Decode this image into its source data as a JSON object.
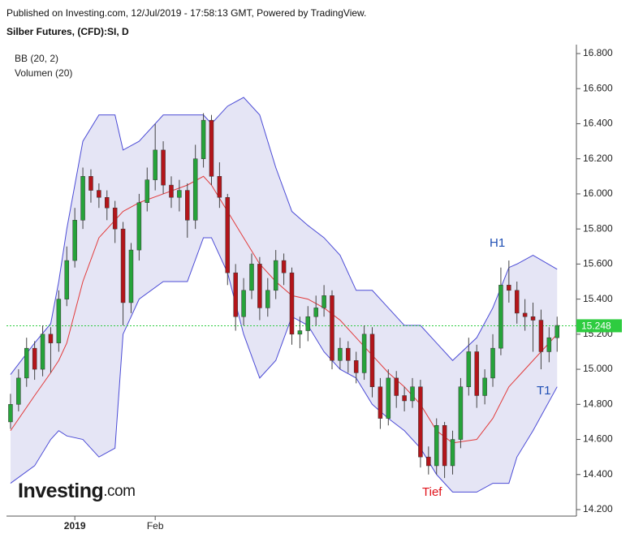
{
  "chart_data": {
    "type": "candlestick",
    "published": "Published on Investing.com, 12/Jul/2019 - 17:58:13 GMT, Powered by TradingView.",
    "title": "Silber Futures, (CFD):SI, D",
    "indicators": [
      "BB (20, 2)",
      "Volumen (20)"
    ],
    "logo": {
      "name": "Investing",
      "suffix": ".com"
    },
    "xlim": [
      -0.5,
      70.4
    ],
    "xticks": [
      {
        "value": 8,
        "label": "2019"
      },
      {
        "value": 18,
        "label": "Feb"
      }
    ],
    "ylim": [
      14.2,
      16.8
    ],
    "yticks": [
      {
        "value": 14.2,
        "label": "14.200"
      },
      {
        "value": 14.4,
        "label": "14.400"
      },
      {
        "value": 14.6,
        "label": "14.600"
      },
      {
        "value": 14.8,
        "label": "14.800"
      },
      {
        "value": 15.0,
        "label": "15.000"
      },
      {
        "value": 15.2,
        "label": "15.200"
      },
      {
        "value": 15.4,
        "label": "15.400"
      },
      {
        "value": 15.6,
        "label": "15.600"
      },
      {
        "value": 15.8,
        "label": "15.800"
      },
      {
        "value": 16.0,
        "label": "16.000"
      },
      {
        "value": 16.2,
        "label": "16.200"
      },
      {
        "value": 16.4,
        "label": "16.400"
      },
      {
        "value": 16.6,
        "label": "16.600"
      },
      {
        "value": 16.8,
        "label": "16.800"
      }
    ],
    "up_color": "#26a33a",
    "down_color": "#b3151a",
    "open": [
      14.7,
      14.8,
      14.95,
      15.12,
      15.0,
      15.2,
      15.15,
      15.4,
      15.62,
      15.85,
      16.1,
      16.02,
      15.98,
      15.92,
      15.8,
      15.38,
      15.68,
      15.95,
      16.08,
      16.25,
      16.05,
      15.98,
      16.02,
      15.85,
      16.2,
      16.42,
      16.1,
      15.98,
      15.55,
      15.3,
      15.45,
      15.6,
      15.35,
      15.45,
      15.62,
      15.55,
      15.2,
      15.22,
      15.3,
      15.35,
      15.42,
      15.05,
      15.12,
      15.05,
      14.98,
      15.2,
      14.9,
      14.72,
      14.95,
      14.85,
      14.82,
      14.9,
      14.5,
      14.45,
      14.68,
      14.45,
      14.6,
      14.9,
      15.1,
      14.85,
      14.95,
      15.12,
      15.48,
      15.45,
      15.32,
      15.3,
      15.28,
      15.1,
      15.18
    ],
    "high": [
      14.86,
      15.0,
      15.18,
      15.16,
      15.25,
      15.24,
      15.45,
      15.7,
      15.92,
      16.15,
      16.14,
      16.06,
      16.02,
      15.96,
      15.84,
      15.72,
      16.0,
      16.15,
      16.4,
      16.3,
      16.1,
      16.08,
      16.06,
      16.28,
      16.46,
      16.45,
      16.18,
      16.0,
      15.6,
      15.52,
      15.66,
      15.64,
      15.52,
      15.68,
      15.66,
      15.58,
      15.3,
      15.36,
      15.42,
      15.48,
      15.45,
      15.18,
      15.16,
      15.1,
      15.25,
      15.24,
      14.95,
      15.0,
      14.99,
      14.9,
      14.95,
      14.94,
      14.56,
      14.72,
      14.7,
      14.65,
      14.95,
      15.18,
      15.14,
      15.0,
      15.2,
      15.58,
      15.62,
      15.5,
      15.4,
      15.38,
      15.34,
      15.24,
      15.3
    ],
    "low": [
      14.66,
      14.76,
      14.9,
      14.94,
      14.96,
      14.98,
      15.1,
      15.36,
      15.58,
      15.8,
      15.95,
      15.92,
      15.85,
      15.72,
      15.25,
      15.32,
      15.62,
      15.9,
      16.02,
      16.0,
      15.92,
      15.9,
      15.75,
      15.8,
      16.15,
      16.05,
      15.92,
      15.48,
      15.22,
      15.25,
      15.4,
      15.28,
      15.3,
      15.4,
      15.48,
      15.14,
      15.12,
      15.16,
      15.25,
      15.3,
      15.0,
      15.0,
      14.98,
      14.92,
      14.94,
      14.84,
      14.66,
      14.68,
      14.78,
      14.76,
      14.78,
      14.44,
      14.4,
      14.4,
      14.38,
      14.4,
      14.55,
      14.85,
      14.78,
      14.8,
      14.9,
      15.08,
      15.38,
      15.26,
      15.22,
      15.1,
      15.0,
      15.04,
      15.1
    ],
    "close": [
      14.8,
      14.95,
      15.12,
      15.0,
      15.2,
      15.15,
      15.4,
      15.62,
      15.85,
      16.1,
      16.02,
      15.98,
      15.92,
      15.8,
      15.38,
      15.68,
      15.95,
      16.08,
      16.25,
      16.05,
      15.98,
      16.02,
      15.85,
      16.2,
      16.42,
      16.1,
      15.98,
      15.55,
      15.3,
      15.45,
      15.6,
      15.35,
      15.45,
      15.62,
      15.55,
      15.2,
      15.22,
      15.3,
      15.35,
      15.42,
      15.05,
      15.12,
      15.05,
      14.98,
      15.2,
      14.9,
      14.72,
      14.95,
      14.85,
      14.82,
      14.9,
      14.5,
      14.45,
      14.68,
      14.45,
      14.6,
      14.9,
      15.1,
      14.85,
      14.95,
      15.12,
      15.48,
      15.45,
      15.32,
      15.3,
      15.28,
      15.1,
      15.18,
      15.25
    ],
    "bands": {
      "x": [
        0,
        3,
        5,
        6,
        7,
        9,
        11,
        13,
        14,
        16,
        19,
        22,
        24,
        25,
        27,
        29,
        31,
        33,
        35,
        37,
        39,
        41,
        43,
        45,
        47,
        49,
        51,
        53,
        55,
        58,
        60,
        62,
        63,
        65,
        68
      ],
      "fill": "#dcdcf2",
      "line_color": "#4b4bd6",
      "mid_color": "#e23b3b",
      "upper": [
        14.97,
        15.15,
        15.26,
        15.5,
        15.8,
        16.3,
        16.45,
        16.45,
        16.25,
        16.3,
        16.45,
        16.45,
        16.45,
        16.4,
        16.5,
        16.55,
        16.45,
        16.15,
        15.9,
        15.82,
        15.75,
        15.65,
        15.45,
        15.45,
        15.35,
        15.25,
        15.25,
        15.15,
        15.05,
        15.18,
        15.35,
        15.58,
        15.6,
        15.65,
        15.57
      ],
      "middle": [
        14.65,
        14.85,
        14.98,
        15.05,
        15.15,
        15.5,
        15.75,
        15.85,
        15.9,
        15.95,
        16.0,
        16.05,
        16.1,
        16.05,
        15.9,
        15.75,
        15.6,
        15.5,
        15.42,
        15.4,
        15.35,
        15.28,
        15.18,
        15.08,
        14.98,
        14.9,
        14.8,
        14.65,
        14.58,
        14.6,
        14.72,
        14.9,
        14.95,
        15.05,
        15.2
      ],
      "lower": [
        14.35,
        14.45,
        14.6,
        14.65,
        14.62,
        14.6,
        14.5,
        14.55,
        15.2,
        15.4,
        15.5,
        15.5,
        15.75,
        15.75,
        15.55,
        15.2,
        14.95,
        15.05,
        15.3,
        15.25,
        15.1,
        15.0,
        14.95,
        14.8,
        14.72,
        14.65,
        14.55,
        14.4,
        14.3,
        14.3,
        14.35,
        14.35,
        14.5,
        14.65,
        14.9
      ]
    },
    "last_price": 15.248,
    "last_color": "#2ecc40",
    "annotations": [
      {
        "text": "H1",
        "color": "#1f4fb4"
      },
      {
        "text": "T1",
        "color": "#1f4fb4"
      },
      {
        "text": "Tief",
        "color": "#e0121a"
      }
    ]
  }
}
